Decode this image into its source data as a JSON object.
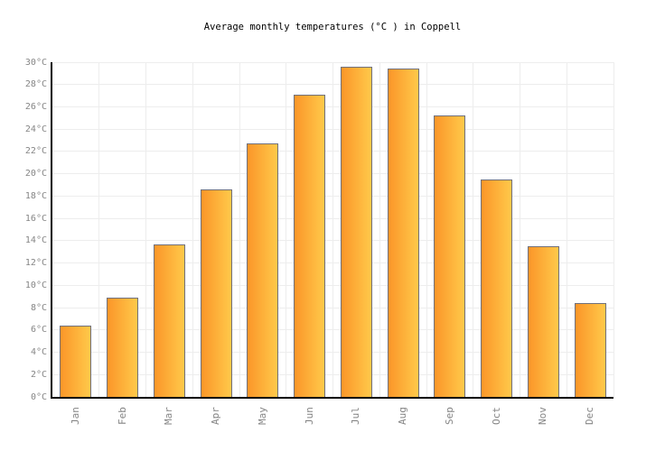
{
  "title": "Average monthly temperatures (°C ) in Coppell",
  "chart_data": {
    "type": "bar",
    "title": "Average monthly temperatures (°C ) in Coppell",
    "categories": [
      "Jan",
      "Feb",
      "Mar",
      "Apr",
      "May",
      "Jun",
      "Jul",
      "Aug",
      "Sep",
      "Oct",
      "Nov",
      "Dec"
    ],
    "values": [
      6.4,
      8.9,
      13.7,
      18.6,
      22.7,
      27.1,
      29.6,
      29.4,
      25.2,
      19.5,
      13.5,
      8.4
    ],
    "unit": "°C",
    "xlabel": "",
    "ylabel": "",
    "ylim": [
      0,
      30
    ],
    "ytick_step": 2,
    "ytick_suffix": "°C",
    "grid": true,
    "legend": false,
    "colors": {
      "bar_gradient_left": "#FB9629",
      "bar_gradient_right": "#FFC94A",
      "bar_border": "#70707a",
      "grid_line": "#EDEDED",
      "axis_line": "#000000",
      "tick_label": "#868686",
      "title_text": "#000000",
      "background": "#FFFFFF"
    }
  }
}
